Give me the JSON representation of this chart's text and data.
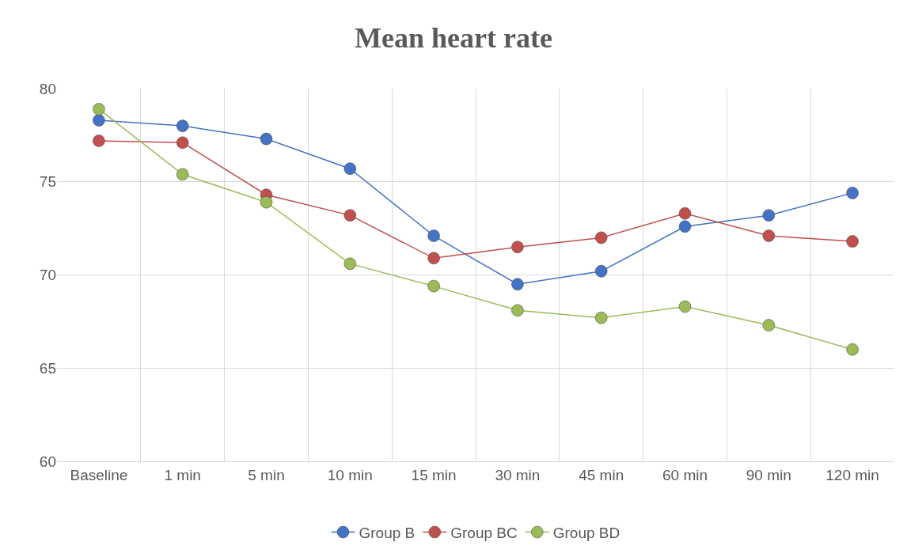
{
  "chart_data": {
    "type": "line",
    "title": "Mean heart rate",
    "categories": [
      "Baseline",
      "1 min",
      "5 min",
      "10 min",
      "15 min",
      "30 min",
      "45 min",
      "60 min",
      "90 min",
      "120 min"
    ],
    "series": [
      {
        "name": "Group B",
        "color": "#4472c4",
        "values": [
          78.3,
          78.0,
          77.3,
          75.7,
          72.1,
          69.5,
          70.2,
          72.6,
          73.2,
          74.4
        ]
      },
      {
        "name": "Group BC",
        "color": "#c0504d",
        "values": [
          77.2,
          77.1,
          74.3,
          73.2,
          70.9,
          71.5,
          72.0,
          73.3,
          72.1,
          71.8
        ]
      },
      {
        "name": "Group BD",
        "color": "#9bbb59",
        "values": [
          78.9,
          75.4,
          73.9,
          70.6,
          69.4,
          68.1,
          67.7,
          68.3,
          67.3,
          66.0
        ]
      }
    ],
    "ylim": [
      60,
      80
    ],
    "yticks": [
      60,
      65,
      70,
      75,
      80
    ],
    "grid": true,
    "legend": "bottom",
    "marker": "circle",
    "line_style": "solid"
  }
}
